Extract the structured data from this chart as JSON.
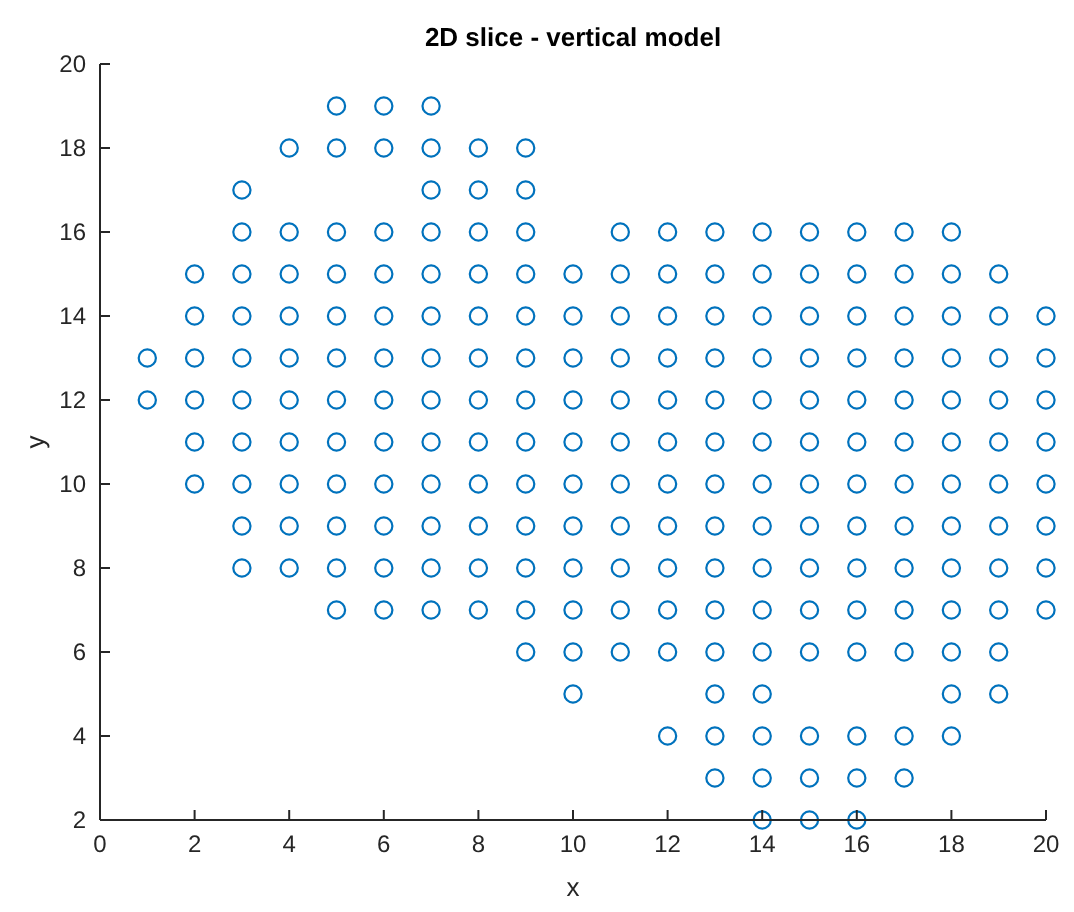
{
  "chart_data": {
    "type": "scatter",
    "title": "2D slice - vertical model",
    "xlabel": "x",
    "ylabel": "y",
    "xlim": [
      0,
      20
    ],
    "ylim": [
      2,
      20
    ],
    "xticks": [
      0,
      2,
      4,
      6,
      8,
      10,
      12,
      14,
      16,
      18,
      20
    ],
    "yticks": [
      2,
      4,
      6,
      8,
      10,
      12,
      14,
      16,
      18,
      20
    ],
    "marker": "circle",
    "grid": false,
    "series": [
      {
        "color": "#0072bd",
        "x": [
          1,
          1
        ],
        "values": [
          12,
          13
        ]
      },
      {
        "color": "#0072bd",
        "x": [
          2,
          2,
          2,
          2,
          2,
          2
        ],
        "values": [
          10,
          11,
          12,
          13,
          14,
          15
        ]
      },
      {
        "color": "#0072bd",
        "x": [
          3,
          3,
          3,
          3,
          3,
          3,
          3,
          3,
          3,
          3
        ],
        "values": [
          8,
          9,
          10,
          11,
          12,
          13,
          14,
          15,
          16,
          17
        ]
      },
      {
        "color": "#0072bd",
        "x": [
          4,
          4,
          4,
          4,
          4,
          4,
          4,
          4,
          4,
          4
        ],
        "values": [
          8,
          9,
          10,
          11,
          12,
          13,
          14,
          15,
          16,
          18
        ]
      },
      {
        "color": "#0072bd",
        "x": [
          5,
          5,
          5,
          5,
          5,
          5,
          5,
          5,
          5,
          5,
          5,
          5
        ],
        "values": [
          7,
          8,
          9,
          10,
          11,
          12,
          13,
          14,
          15,
          16,
          18,
          19
        ]
      },
      {
        "color": "#0072bd",
        "x": [
          6,
          6,
          6,
          6,
          6,
          6,
          6,
          6,
          6,
          6,
          6,
          6
        ],
        "values": [
          7,
          8,
          9,
          10,
          11,
          12,
          13,
          14,
          15,
          16,
          18,
          19
        ]
      },
      {
        "color": "#0072bd",
        "x": [
          7,
          7,
          7,
          7,
          7,
          7,
          7,
          7,
          7,
          7,
          7,
          7,
          7
        ],
        "values": [
          7,
          8,
          9,
          10,
          11,
          12,
          13,
          14,
          15,
          16,
          17,
          18,
          19
        ]
      },
      {
        "color": "#0072bd",
        "x": [
          8,
          8,
          8,
          8,
          8,
          8,
          8,
          8,
          8,
          8,
          8,
          8
        ],
        "values": [
          7,
          8,
          9,
          10,
          11,
          12,
          13,
          14,
          15,
          16,
          17,
          18
        ]
      },
      {
        "color": "#0072bd",
        "x": [
          9,
          9,
          9,
          9,
          9,
          9,
          9,
          9,
          9,
          9,
          9,
          9,
          9
        ],
        "values": [
          6,
          7,
          8,
          9,
          10,
          11,
          12,
          13,
          14,
          15,
          16,
          17,
          18
        ]
      },
      {
        "color": "#0072bd",
        "x": [
          10,
          10,
          10,
          10,
          10,
          10,
          10,
          10,
          10,
          10,
          10
        ],
        "values": [
          5,
          6,
          7,
          8,
          9,
          10,
          11,
          12,
          13,
          14,
          15
        ]
      },
      {
        "color": "#0072bd",
        "x": [
          11,
          11,
          11,
          11,
          11,
          11,
          11,
          11,
          11,
          11,
          11
        ],
        "values": [
          6,
          7,
          8,
          9,
          10,
          11,
          12,
          13,
          14,
          15,
          16
        ]
      },
      {
        "color": "#0072bd",
        "x": [
          12,
          12,
          12,
          12,
          12,
          12,
          12,
          12,
          12,
          12,
          12,
          12
        ],
        "values": [
          4,
          6,
          7,
          8,
          9,
          10,
          11,
          12,
          13,
          14,
          15,
          16
        ]
      },
      {
        "color": "#0072bd",
        "x": [
          13,
          13,
          13,
          13,
          13,
          13,
          13,
          13,
          13,
          13,
          13,
          13,
          13,
          13
        ],
        "values": [
          3,
          4,
          5,
          6,
          7,
          8,
          9,
          10,
          11,
          12,
          13,
          14,
          15,
          16
        ]
      },
      {
        "color": "#0072bd",
        "x": [
          14,
          14,
          14,
          14,
          14,
          14,
          14,
          14,
          14,
          14,
          14,
          14,
          14,
          14,
          14
        ],
        "values": [
          2,
          3,
          4,
          5,
          6,
          7,
          8,
          9,
          10,
          11,
          12,
          13,
          14,
          15,
          16
        ]
      },
      {
        "color": "#0072bd",
        "x": [
          15,
          15,
          15,
          15,
          15,
          15,
          15,
          15,
          15,
          15,
          15,
          15,
          15,
          15
        ],
        "values": [
          2,
          3,
          4,
          6,
          7,
          8,
          9,
          10,
          11,
          12,
          13,
          14,
          15,
          16
        ]
      },
      {
        "color": "#0072bd",
        "x": [
          16,
          16,
          16,
          16,
          16,
          16,
          16,
          16,
          16,
          16,
          16,
          16,
          16,
          16
        ],
        "values": [
          2,
          3,
          4,
          6,
          7,
          8,
          9,
          10,
          11,
          12,
          13,
          14,
          15,
          16
        ]
      },
      {
        "color": "#0072bd",
        "x": [
          17,
          17,
          17,
          17,
          17,
          17,
          17,
          17,
          17,
          17,
          17,
          17,
          17
        ],
        "values": [
          3,
          4,
          6,
          7,
          8,
          9,
          10,
          11,
          12,
          13,
          14,
          15,
          16
        ]
      },
      {
        "color": "#0072bd",
        "x": [
          18,
          18,
          18,
          18,
          18,
          18,
          18,
          18,
          18,
          18,
          18,
          18,
          18
        ],
        "values": [
          4,
          5,
          6,
          7,
          8,
          9,
          10,
          11,
          12,
          13,
          14,
          15,
          16
        ]
      },
      {
        "color": "#0072bd",
        "x": [
          19,
          19,
          19,
          19,
          19,
          19,
          19,
          19,
          19,
          19,
          19
        ],
        "values": [
          5,
          6,
          7,
          8,
          9,
          10,
          11,
          12,
          13,
          14,
          15
        ]
      },
      {
        "color": "#0072bd",
        "x": [
          20,
          20,
          20,
          20,
          20,
          20,
          20,
          20
        ],
        "values": [
          7,
          8,
          9,
          10,
          11,
          12,
          13,
          14
        ]
      }
    ]
  }
}
